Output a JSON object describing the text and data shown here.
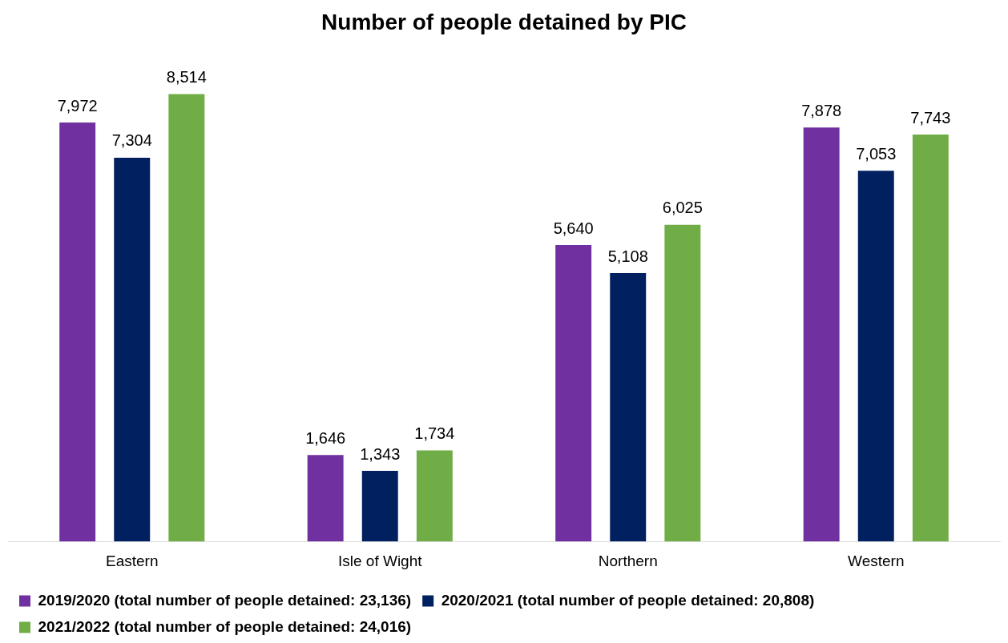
{
  "chart_data": {
    "type": "bar",
    "title": "Number of people detained by PIC",
    "categories": [
      "Eastern",
      "Isle of Wight",
      "Northern",
      "Western"
    ],
    "series": [
      {
        "name": "2019/2020 (total number of people detained: 23,136)",
        "color": "#7030a0",
        "values": [
          7972,
          1646,
          5640,
          7878
        ],
        "value_labels": [
          "7,972",
          "1,646",
          "5,640",
          "7,878"
        ]
      },
      {
        "name": "2020/2021 (total number of people detained: 20,808)",
        "color": "#002060",
        "values": [
          7304,
          1343,
          5108,
          7053
        ],
        "value_labels": [
          "7,304",
          "1,343",
          "5,108",
          "7,053"
        ]
      },
      {
        "name": "2021/2022 (total number of people detained: 24,016)",
        "color": "#70ad47",
        "values": [
          8514,
          1734,
          6025,
          7743
        ],
        "value_labels": [
          "8,514",
          "1,734",
          "6,025",
          "7,743"
        ]
      }
    ],
    "grid": false,
    "legend": "bottom"
  }
}
